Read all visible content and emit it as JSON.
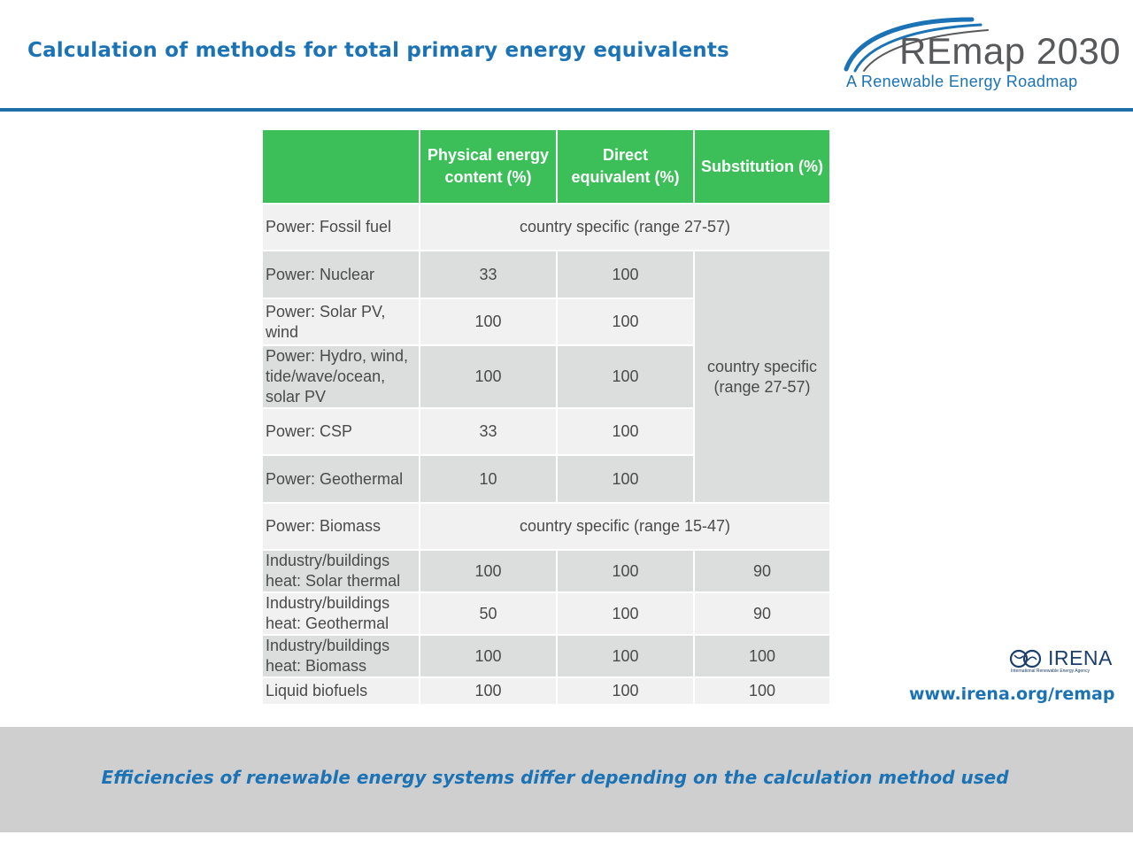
{
  "header": {
    "title": "Calculation of methods for total primary energy equivalents",
    "logo": {
      "name": "REmap 2030",
      "tagline": "A Renewable Energy Roadmap",
      "accent_color": "#1b73b5"
    }
  },
  "table": {
    "columns": [
      "",
      "Physical energy content (%)",
      "Direct equivalent (%)",
      "Substitution (%)"
    ],
    "rows": [
      {
        "label": "Power: Fossil fuel",
        "span": "country specific (range 27-57)"
      },
      {
        "label": "Power: Nuclear",
        "physical": "33",
        "direct": "100"
      },
      {
        "label": "Power: Solar PV, wind",
        "physical": "100",
        "direct": "100"
      },
      {
        "label": "Power: Hydro, wind, tide/wave/ocean, solar PV",
        "physical": "100",
        "direct": "100"
      },
      {
        "label": "Power: CSP",
        "physical": "33",
        "direct": "100"
      },
      {
        "label": "Power: Geothermal",
        "physical": "10",
        "direct": "100"
      },
      {
        "label": "Power: Biomass",
        "span": "country specific (range 15-47)"
      },
      {
        "label": "Industry/buildings heat: Solar thermal",
        "physical": "100",
        "direct": "100",
        "substitution": "90"
      },
      {
        "label": "Industry/buildings heat: Geothermal",
        "physical": "50",
        "direct": "100",
        "substitution": "90"
      },
      {
        "label": "Industry/buildings heat: Biomass",
        "physical": "100",
        "direct": "100",
        "substitution": "100"
      },
      {
        "label": "Liquid biofuels",
        "physical": "100",
        "direct": "100",
        "substitution": "100"
      }
    ],
    "merged_substitution": "country specific (range 27-57)",
    "header_color": "#3cbf59"
  },
  "irena_logo": {
    "name": "IRENA",
    "subtitle": "International Renewable Energy Agency"
  },
  "website": "www.irena.org/remap",
  "footer": {
    "text": "Efficiencies of renewable energy systems differ depending on the calculation method used"
  }
}
